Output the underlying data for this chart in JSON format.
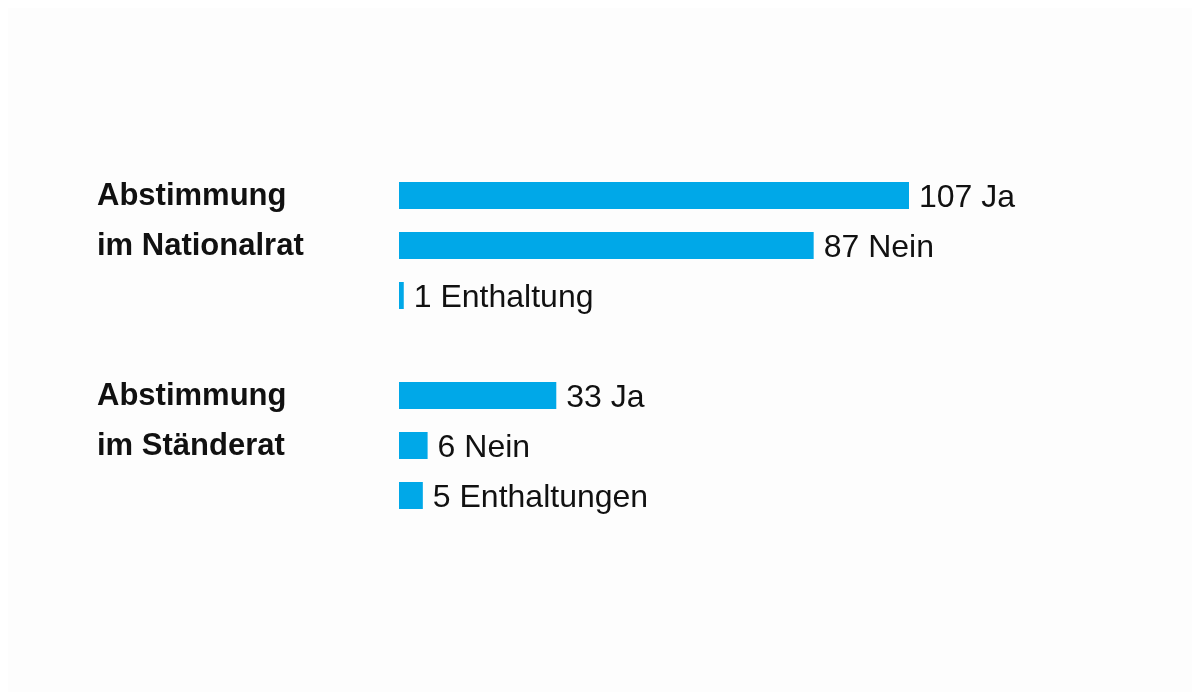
{
  "chart_data": [
    {
      "type": "bar",
      "orientation": "horizontal",
      "title": "Abstimmung im Nationalrat",
      "categories": [
        null,
        null,
        null
      ],
      "values": [
        107,
        87,
        1
      ],
      "value_labels": [
        "107 Ja",
        "87 Nein",
        "1 Enthaltung"
      ],
      "color": "#00a8e8",
      "tick_labels": false,
      "grid": false,
      "legend": false
    },
    {
      "type": "bar",
      "orientation": "horizontal",
      "title": "Abstimmung im Ständerat",
      "categories": [
        null,
        null,
        null
      ],
      "values": [
        33,
        6,
        5
      ],
      "value_labels": [
        "33 Ja",
        "6 Nein",
        "5 Enthaltungen"
      ],
      "color": "#00a8e8",
      "tick_labels": false,
      "grid": false,
      "legend": false
    }
  ]
}
